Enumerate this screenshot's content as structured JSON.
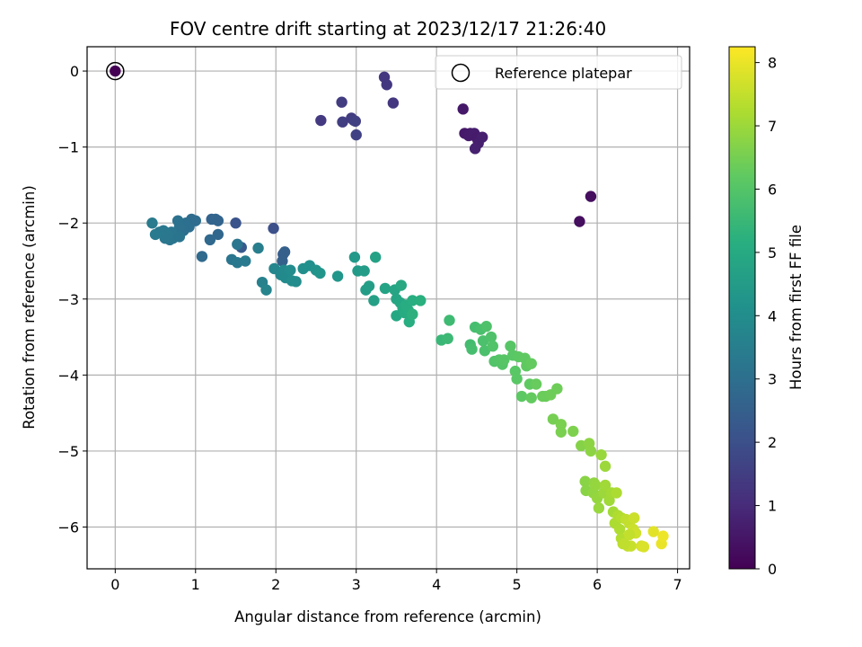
{
  "chart_data": {
    "type": "scatter",
    "title": "FOV centre drift starting at 2023/12/17 21:26:40",
    "xlabel": "Angular distance from reference (arcmin)",
    "ylabel": "Rotation from reference (arcmin)",
    "xlim": [
      -0.35,
      7.15
    ],
    "ylim": [
      -6.55,
      0.32
    ],
    "xticks": [
      "0",
      "1",
      "2",
      "3",
      "4",
      "5",
      "6",
      "7"
    ],
    "yticks": [
      "0",
      "−1",
      "−2",
      "−3",
      "−4",
      "−5",
      "−6"
    ],
    "grid": true,
    "legend": {
      "location": "upper right",
      "entries": [
        "Reference platepar"
      ]
    },
    "reference_point": {
      "x": 0,
      "y": 0,
      "hours": 0
    },
    "colorbar": {
      "label": "Hours from first FF file",
      "colormap": "viridis",
      "range": [
        0,
        8.25
      ],
      "ticks": [
        "0",
        "1",
        "2",
        "3",
        "4",
        "5",
        "6",
        "7",
        "8"
      ]
    },
    "series": [
      {
        "columns": [
          "x",
          "y",
          "hours"
        ],
        "points": [
          [
            0.0,
            0.0,
            0.0
          ],
          [
            5.78,
            -1.98,
            0.3
          ],
          [
            5.92,
            -1.65,
            0.3
          ],
          [
            4.33,
            -0.5,
            0.55
          ],
          [
            4.35,
            -0.82,
            0.55
          ],
          [
            4.42,
            -0.82,
            0.6
          ],
          [
            4.4,
            -0.85,
            0.6
          ],
          [
            4.47,
            -0.82,
            0.65
          ],
          [
            4.5,
            -0.88,
            0.6
          ],
          [
            4.52,
            -0.95,
            0.7
          ],
          [
            4.48,
            -1.02,
            0.75
          ],
          [
            4.57,
            -0.87,
            0.7
          ],
          [
            3.35,
            -0.08,
            1.3
          ],
          [
            3.38,
            -0.18,
            1.35
          ],
          [
            3.46,
            -0.42,
            1.3
          ],
          [
            2.56,
            -0.65,
            1.4
          ],
          [
            2.82,
            -0.41,
            1.45
          ],
          [
            2.83,
            -0.67,
            1.5
          ],
          [
            2.94,
            -0.62,
            1.45
          ],
          [
            2.97,
            -0.65,
            1.5
          ],
          [
            2.99,
            -0.66,
            1.55
          ],
          [
            3.0,
            -0.84,
            1.6
          ],
          [
            1.97,
            -2.07,
            2.0
          ],
          [
            1.5,
            -2.0,
            2.1
          ],
          [
            1.57,
            -2.32,
            2.3
          ],
          [
            2.09,
            -2.41,
            2.4
          ],
          [
            2.11,
            -2.38,
            2.5
          ],
          [
            2.08,
            -2.5,
            2.5
          ],
          [
            1.2,
            -1.95,
            2.6
          ],
          [
            1.25,
            -1.95,
            2.7
          ],
          [
            1.28,
            -1.97,
            2.65
          ],
          [
            1.28,
            -2.15,
            2.75
          ],
          [
            1.18,
            -2.22,
            2.8
          ],
          [
            1.08,
            -2.44,
            2.85
          ],
          [
            0.95,
            -1.95,
            2.9
          ],
          [
            0.92,
            -2.05,
            2.95
          ],
          [
            0.88,
            -2.0,
            3.0
          ],
          [
            0.85,
            -2.1,
            3.0
          ],
          [
            0.8,
            -2.05,
            3.05
          ],
          [
            0.78,
            -1.97,
            3.1
          ],
          [
            0.76,
            -2.15,
            3.1
          ],
          [
            0.72,
            -2.2,
            3.15
          ],
          [
            0.7,
            -2.12,
            3.2
          ],
          [
            0.68,
            -2.22,
            3.2
          ],
          [
            0.65,
            -2.15,
            3.25
          ],
          [
            0.62,
            -2.2,
            3.25
          ],
          [
            0.6,
            -2.1,
            3.3
          ],
          [
            0.55,
            -2.12,
            3.3
          ],
          [
            0.5,
            -2.15,
            3.35
          ],
          [
            0.46,
            -2.0,
            3.4
          ],
          [
            0.8,
            -2.18,
            3.15
          ],
          [
            1.0,
            -1.97,
            2.9
          ],
          [
            1.45,
            -2.48,
            3.2
          ],
          [
            1.52,
            -2.28,
            3.2
          ],
          [
            1.52,
            -2.52,
            3.3
          ],
          [
            1.62,
            -2.5,
            3.35
          ],
          [
            1.78,
            -2.33,
            3.5
          ],
          [
            1.83,
            -2.78,
            3.6
          ],
          [
            1.88,
            -2.88,
            3.7
          ],
          [
            1.98,
            -2.6,
            3.75
          ],
          [
            2.06,
            -2.68,
            3.8
          ],
          [
            2.1,
            -2.62,
            3.85
          ],
          [
            2.12,
            -2.72,
            3.9
          ],
          [
            2.18,
            -2.62,
            3.95
          ],
          [
            2.2,
            -2.76,
            3.95
          ],
          [
            2.25,
            -2.77,
            4.0
          ],
          [
            2.34,
            -2.6,
            4.05
          ],
          [
            2.42,
            -2.56,
            4.1
          ],
          [
            2.5,
            -2.62,
            4.2
          ],
          [
            2.55,
            -2.66,
            4.25
          ],
          [
            2.77,
            -2.7,
            4.3
          ],
          [
            2.98,
            -2.45,
            4.4
          ],
          [
            3.02,
            -2.63,
            4.45
          ],
          [
            3.1,
            -2.63,
            4.5
          ],
          [
            3.12,
            -2.88,
            4.55
          ],
          [
            3.16,
            -2.83,
            4.6
          ],
          [
            3.22,
            -3.02,
            4.65
          ],
          [
            3.24,
            -2.45,
            4.7
          ],
          [
            3.36,
            -2.86,
            4.75
          ],
          [
            3.48,
            -2.88,
            4.8
          ],
          [
            3.5,
            -3.0,
            4.85
          ],
          [
            3.5,
            -3.22,
            4.9
          ],
          [
            3.55,
            -3.05,
            4.9
          ],
          [
            3.56,
            -2.82,
            4.95
          ],
          [
            3.58,
            -3.12,
            5.0
          ],
          [
            3.6,
            -3.18,
            5.05
          ],
          [
            3.62,
            -3.08,
            5.1
          ],
          [
            3.65,
            -3.15,
            5.1
          ],
          [
            3.66,
            -3.3,
            5.15
          ],
          [
            3.7,
            -3.02,
            5.15
          ],
          [
            3.8,
            -3.02,
            5.2
          ],
          [
            3.7,
            -3.2,
            5.25
          ],
          [
            4.06,
            -3.54,
            5.5
          ],
          [
            4.14,
            -3.52,
            5.55
          ],
          [
            4.16,
            -3.28,
            5.6
          ],
          [
            4.42,
            -3.6,
            5.7
          ],
          [
            4.44,
            -3.66,
            5.75
          ],
          [
            4.48,
            -3.37,
            5.75
          ],
          [
            4.55,
            -3.4,
            5.8
          ],
          [
            4.58,
            -3.55,
            5.85
          ],
          [
            4.6,
            -3.68,
            5.85
          ],
          [
            4.62,
            -3.36,
            5.9
          ],
          [
            4.68,
            -3.5,
            5.9
          ],
          [
            4.7,
            -3.62,
            5.95
          ],
          [
            4.72,
            -3.82,
            5.95
          ],
          [
            4.78,
            -3.8,
            6.0
          ],
          [
            4.82,
            -3.86,
            6.0
          ],
          [
            4.84,
            -3.8,
            6.05
          ],
          [
            4.92,
            -3.62,
            6.05
          ],
          [
            4.95,
            -3.74,
            6.1
          ],
          [
            4.98,
            -3.95,
            6.1
          ],
          [
            5.0,
            -4.05,
            6.1
          ],
          [
            5.02,
            -3.76,
            6.15
          ],
          [
            5.06,
            -4.28,
            6.15
          ],
          [
            5.1,
            -3.78,
            6.2
          ],
          [
            5.12,
            -3.88,
            6.2
          ],
          [
            5.16,
            -4.12,
            6.2
          ],
          [
            5.18,
            -3.85,
            6.25
          ],
          [
            5.18,
            -4.3,
            6.25
          ],
          [
            5.24,
            -4.12,
            6.3
          ],
          [
            5.32,
            -4.28,
            6.35
          ],
          [
            5.36,
            -4.28,
            6.35
          ],
          [
            5.42,
            -4.26,
            6.4
          ],
          [
            5.5,
            -4.18,
            6.4
          ],
          [
            5.45,
            -4.58,
            6.5
          ],
          [
            5.55,
            -4.65,
            6.55
          ],
          [
            5.55,
            -4.75,
            6.55
          ],
          [
            5.7,
            -4.74,
            6.6
          ],
          [
            5.8,
            -4.93,
            6.7
          ],
          [
            5.85,
            -5.4,
            6.75
          ],
          [
            5.86,
            -5.52,
            6.75
          ],
          [
            5.9,
            -4.9,
            6.8
          ],
          [
            5.92,
            -5.0,
            6.8
          ],
          [
            5.95,
            -5.55,
            6.85
          ],
          [
            5.96,
            -5.42,
            6.85
          ],
          [
            5.98,
            -5.45,
            6.9
          ],
          [
            6.0,
            -5.62,
            6.9
          ],
          [
            6.02,
            -5.75,
            6.95
          ],
          [
            6.05,
            -5.05,
            6.95
          ],
          [
            6.08,
            -5.55,
            7.0
          ],
          [
            6.1,
            -5.2,
            7.0
          ],
          [
            6.1,
            -5.45,
            7.05
          ],
          [
            6.15,
            -5.65,
            7.05
          ],
          [
            6.18,
            -5.55,
            7.1
          ],
          [
            6.2,
            -5.8,
            7.1
          ],
          [
            6.22,
            -5.95,
            7.2
          ],
          [
            6.24,
            -5.55,
            7.2
          ],
          [
            6.26,
            -5.85,
            7.25
          ],
          [
            6.28,
            -6.03,
            7.25
          ],
          [
            6.3,
            -5.88,
            7.3
          ],
          [
            6.3,
            -6.15,
            7.3
          ],
          [
            6.32,
            -6.22,
            7.4
          ],
          [
            6.36,
            -5.9,
            7.45
          ],
          [
            6.38,
            -6.25,
            7.5
          ],
          [
            6.4,
            -5.95,
            7.5
          ],
          [
            6.42,
            -6.25,
            7.55
          ],
          [
            6.45,
            -6.03,
            7.6
          ],
          [
            6.46,
            -5.88,
            7.6
          ],
          [
            6.48,
            -6.08,
            7.65
          ],
          [
            6.55,
            -6.25,
            7.75
          ],
          [
            6.58,
            -6.26,
            7.8
          ],
          [
            6.7,
            -6.06,
            7.9
          ],
          [
            6.8,
            -6.22,
            8.0
          ],
          [
            6.82,
            -6.12,
            8.05
          ],
          [
            6.34,
            -6.22,
            7.45
          ],
          [
            6.4,
            -6.1,
            7.5
          ]
        ]
      }
    ]
  }
}
